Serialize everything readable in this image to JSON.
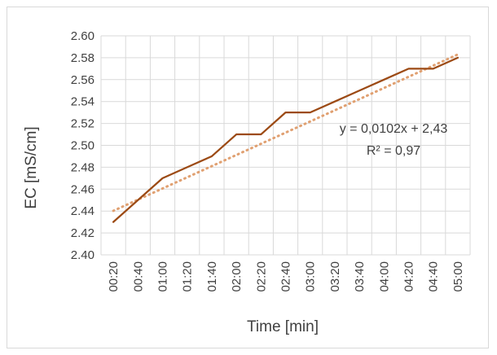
{
  "chart_data": {
    "type": "line",
    "title": "",
    "xlabel": "Time [min]",
    "ylabel": "EC [mS/cm]",
    "ylim": [
      2.4,
      2.6
    ],
    "ytick_step": 0.02,
    "y_decimals": 2,
    "grid": true,
    "legend": "none",
    "categories": [
      "00:20",
      "00:40",
      "01:00",
      "01:20",
      "01:40",
      "02:00",
      "02:20",
      "02:40",
      "03:00",
      "03:20",
      "03:40",
      "04:00",
      "04:20",
      "04:40",
      "05:00"
    ],
    "series": [
      {
        "values": [
          2.43,
          2.45,
          2.47,
          2.48,
          2.49,
          2.51,
          2.51,
          2.53,
          2.53,
          2.54,
          2.55,
          2.56,
          2.57,
          2.57,
          2.58
        ],
        "color": "#9c4a14",
        "style": "solid"
      }
    ],
    "trendline": {
      "type": "linear",
      "slope": 0.0102,
      "intercept": 2.43,
      "color": "#e0a071",
      "style": "dotted",
      "equation_label": "y = 0,0102x + 2,43",
      "r2_label": "R² = 0,97"
    }
  }
}
